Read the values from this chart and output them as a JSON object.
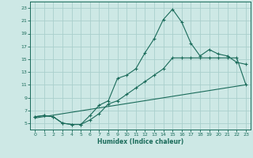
{
  "title": "",
  "xlabel": "Humidex (Indice chaleur)",
  "xlim": [
    -0.5,
    23.5
  ],
  "ylim": [
    4,
    24
  ],
  "xticks": [
    0,
    1,
    2,
    3,
    4,
    5,
    6,
    7,
    8,
    9,
    10,
    11,
    12,
    13,
    14,
    15,
    16,
    17,
    18,
    19,
    20,
    21,
    22,
    23
  ],
  "yticks": [
    5,
    7,
    9,
    11,
    13,
    15,
    17,
    19,
    21,
    23
  ],
  "background_color": "#cde8e5",
  "grid_color": "#aacfcc",
  "line_color": "#1a6b5a",
  "line1_x": [
    0,
    1,
    2,
    3,
    4,
    5,
    6,
    7,
    8,
    9,
    10,
    11,
    12,
    13,
    14,
    15,
    16,
    17,
    18,
    19,
    20,
    21,
    22,
    23
  ],
  "line1_y": [
    6.0,
    6.2,
    6.0,
    5.0,
    4.8,
    4.8,
    6.2,
    7.8,
    8.5,
    12.0,
    12.5,
    13.5,
    16.0,
    18.2,
    21.2,
    22.8,
    20.8,
    17.5,
    15.5,
    16.5,
    15.8,
    15.5,
    14.5,
    14.2
  ],
  "line2_x": [
    0,
    1,
    2,
    3,
    4,
    5,
    6,
    7,
    8,
    9,
    10,
    11,
    12,
    13,
    14,
    15,
    16,
    17,
    18,
    19,
    20,
    21,
    22,
    23
  ],
  "line2_y": [
    6.0,
    6.2,
    6.0,
    5.0,
    4.8,
    4.8,
    5.5,
    6.5,
    8.0,
    8.5,
    9.5,
    10.5,
    11.5,
    12.5,
    13.5,
    15.2,
    15.2,
    15.2,
    15.2,
    15.2,
    15.2,
    15.2,
    15.2,
    11.0
  ],
  "line3_x": [
    0,
    23
  ],
  "line3_y": [
    5.8,
    11.0
  ]
}
